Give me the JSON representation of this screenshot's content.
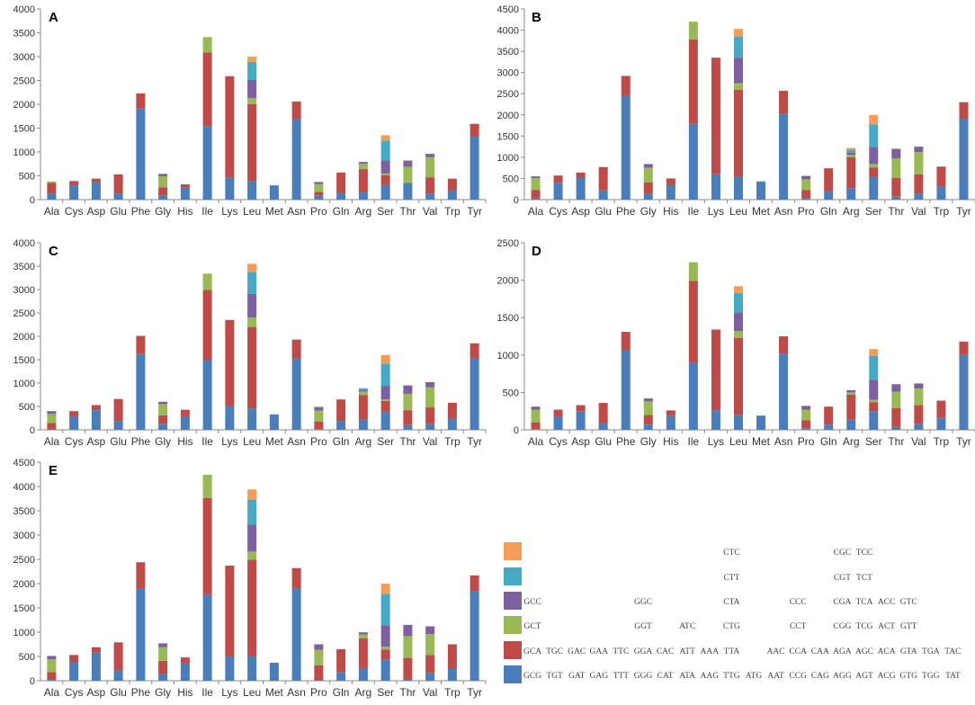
{
  "segment_colors": [
    "#4A7EBB",
    "#BE4B48",
    "#98B954",
    "#7D60A0",
    "#46AAC5",
    "#F59D56"
  ],
  "categories": [
    "Ala",
    "Cys",
    "Asp",
    "Glu",
    "Phe",
    "Gly",
    "His",
    "Ile",
    "Lys",
    "Leu",
    "Met",
    "Asn",
    "Pro",
    "Gln",
    "Arg",
    "Ser",
    "Thr",
    "Val",
    "Trp",
    "Tyr"
  ],
  "chart_data": [
    {
      "type": "bar",
      "stacked": true,
      "panel_label": "A",
      "title": "",
      "xlabel": "",
      "ylabel": "",
      "ylim": [
        0,
        4000
      ],
      "yticks": [
        0,
        500,
        1000,
        1500,
        2000,
        2500,
        3000,
        3500,
        4000
      ],
      "categories": [
        "Ala",
        "Cys",
        "Asp",
        "Glu",
        "Phe",
        "Gly",
        "His",
        "Ile",
        "Lys",
        "Leu",
        "Met",
        "Asn",
        "Pro",
        "Gln",
        "Arg",
        "Ser",
        "Thr",
        "Val",
        "Trp",
        "Tyr"
      ],
      "stacks": [
        [
          120,
          230,
          30,
          0,
          0,
          0
        ],
        [
          300,
          90,
          0,
          0,
          0,
          0
        ],
        [
          370,
          70,
          0,
          0,
          0,
          0
        ],
        [
          120,
          410,
          0,
          0,
          0,
          0
        ],
        [
          1910,
          320,
          0,
          0,
          0,
          0
        ],
        [
          90,
          170,
          230,
          50,
          0,
          0
        ],
        [
          250,
          70,
          0,
          0,
          0,
          0
        ],
        [
          1540,
          1550,
          320,
          0,
          0,
          0
        ],
        [
          460,
          2130,
          0,
          0,
          0,
          0
        ],
        [
          390,
          1610,
          130,
          380,
          380,
          110
        ],
        [
          300,
          0,
          0,
          0,
          0,
          0
        ],
        [
          1690,
          370,
          0,
          0,
          0,
          0
        ],
        [
          80,
          80,
          170,
          40,
          0,
          0
        ],
        [
          140,
          430,
          0,
          0,
          0,
          0
        ],
        [
          170,
          470,
          110,
          40,
          0,
          0
        ],
        [
          310,
          200,
          40,
          270,
          420,
          110
        ],
        [
          350,
          0,
          340,
          130,
          0,
          0
        ],
        [
          120,
          350,
          420,
          70,
          0,
          0
        ],
        [
          190,
          250,
          0,
          0,
          0,
          0
        ],
        [
          1320,
          270,
          0,
          0,
          0,
          0
        ]
      ]
    },
    {
      "type": "bar",
      "stacked": true,
      "panel_label": "B",
      "title": "",
      "xlabel": "",
      "ylabel": "",
      "ylim": [
        0,
        4500
      ],
      "yticks": [
        0,
        500,
        1000,
        1500,
        2000,
        2500,
        3000,
        3500,
        4000,
        4500
      ],
      "categories": [
        "Ala",
        "Cys",
        "Asp",
        "Glu",
        "Phe",
        "Gly",
        "His",
        "Ile",
        "Lys",
        "Leu",
        "Met",
        "Asn",
        "Pro",
        "Gln",
        "Arg",
        "Ser",
        "Thr",
        "Val",
        "Trp",
        "Tyr"
      ],
      "stacks": [
        [
          30,
          200,
          280,
          40,
          0,
          0
        ],
        [
          400,
          170,
          0,
          0,
          0,
          0
        ],
        [
          520,
          120,
          0,
          0,
          0,
          0
        ],
        [
          220,
          550,
          0,
          0,
          0,
          0
        ],
        [
          2450,
          470,
          0,
          0,
          0,
          0
        ],
        [
          130,
          280,
          340,
          90,
          0,
          0
        ],
        [
          340,
          160,
          0,
          0,
          0,
          0
        ],
        [
          1790,
          1990,
          420,
          0,
          0,
          0
        ],
        [
          600,
          2750,
          0,
          0,
          0,
          0
        ],
        [
          540,
          2050,
          160,
          600,
          500,
          180
        ],
        [
          430,
          0,
          0,
          0,
          0,
          0
        ],
        [
          2030,
          540,
          0,
          0,
          0,
          0
        ],
        [
          30,
          200,
          250,
          80,
          0,
          0
        ],
        [
          200,
          540,
          0,
          0,
          0,
          0
        ],
        [
          270,
          730,
          60,
          50,
          70,
          40
        ],
        [
          540,
          220,
          80,
          400,
          540,
          220
        ],
        [
          70,
          440,
          460,
          230,
          0,
          0
        ],
        [
          140,
          460,
          520,
          130,
          0,
          0
        ],
        [
          310,
          470,
          0,
          0,
          0,
          0
        ],
        [
          1910,
          390,
          0,
          0,
          0,
          0
        ]
      ]
    },
    {
      "type": "bar",
      "stacked": true,
      "panel_label": "C",
      "title": "",
      "xlabel": "",
      "ylabel": "",
      "ylim": [
        0,
        4000
      ],
      "yticks": [
        0,
        500,
        1000,
        1500,
        2000,
        2500,
        3000,
        3500,
        4000
      ],
      "categories": [
        "Ala",
        "Cys",
        "Asp",
        "Glu",
        "Phe",
        "Gly",
        "His",
        "Ile",
        "Lys",
        "Leu",
        "Met",
        "Asn",
        "Pro",
        "Gln",
        "Arg",
        "Ser",
        "Thr",
        "Val",
        "Trp",
        "Tyr"
      ],
      "stacks": [
        [
          20,
          130,
          190,
          60,
          0,
          0
        ],
        [
          290,
          110,
          0,
          0,
          0,
          0
        ],
        [
          420,
          110,
          0,
          0,
          0,
          0
        ],
        [
          190,
          470,
          0,
          0,
          0,
          0
        ],
        [
          1620,
          390,
          0,
          0,
          0,
          0
        ],
        [
          130,
          180,
          240,
          50,
          0,
          0
        ],
        [
          290,
          140,
          0,
          0,
          0,
          0
        ],
        [
          1490,
          1500,
          350,
          0,
          0,
          0
        ],
        [
          510,
          1840,
          0,
          0,
          0,
          0
        ],
        [
          460,
          1740,
          200,
          510,
          470,
          170
        ],
        [
          330,
          0,
          0,
          0,
          0,
          0
        ],
        [
          1530,
          400,
          0,
          0,
          0,
          0
        ],
        [
          20,
          160,
          230,
          80,
          0,
          0
        ],
        [
          190,
          460,
          0,
          0,
          0,
          0
        ],
        [
          220,
          520,
          80,
          40,
          30,
          0
        ],
        [
          390,
          230,
          30,
          290,
          480,
          180
        ],
        [
          100,
          320,
          350,
          180,
          0,
          0
        ],
        [
          120,
          360,
          430,
          110,
          0,
          0
        ],
        [
          240,
          340,
          0,
          0,
          0,
          0
        ],
        [
          1530,
          320,
          0,
          0,
          0,
          0
        ]
      ]
    },
    {
      "type": "bar",
      "stacked": true,
      "panel_label": "D",
      "title": "",
      "xlabel": "",
      "ylabel": "",
      "ylim": [
        0,
        2500
      ],
      "yticks": [
        0,
        500,
        1000,
        1500,
        2000,
        2500
      ],
      "categories": [
        "Ala",
        "Cys",
        "Asp",
        "Glu",
        "Phe",
        "Gly",
        "His",
        "Ile",
        "Lys",
        "Leu",
        "Met",
        "Asn",
        "Pro",
        "Gln",
        "Arg",
        "Ser",
        "Thr",
        "Val",
        "Trp",
        "Tyr"
      ],
      "stacks": [
        [
          10,
          90,
          170,
          40,
          0,
          0
        ],
        [
          180,
          90,
          0,
          0,
          0,
          0
        ],
        [
          250,
          80,
          0,
          0,
          0,
          0
        ],
        [
          90,
          270,
          0,
          0,
          0,
          0
        ],
        [
          1070,
          240,
          0,
          0,
          0,
          0
        ],
        [
          70,
          130,
          180,
          40,
          0,
          0
        ],
        [
          190,
          70,
          0,
          0,
          0,
          0
        ],
        [
          900,
          1090,
          250,
          0,
          0,
          0
        ],
        [
          260,
          1080,
          0,
          0,
          0,
          0
        ],
        [
          200,
          1030,
          90,
          250,
          260,
          90
        ],
        [
          190,
          0,
          0,
          0,
          0,
          0
        ],
        [
          1020,
          230,
          0,
          0,
          0,
          0
        ],
        [
          20,
          110,
          140,
          50,
          0,
          0
        ],
        [
          70,
          240,
          0,
          0,
          0,
          0
        ],
        [
          140,
          330,
          30,
          30,
          0,
          0
        ],
        [
          250,
          120,
          30,
          270,
          320,
          90
        ],
        [
          40,
          250,
          220,
          100,
          0,
          0
        ],
        [
          80,
          250,
          220,
          70,
          0,
          0
        ],
        [
          160,
          230,
          0,
          0,
          0,
          0
        ],
        [
          1000,
          180,
          0,
          0,
          0,
          0
        ]
      ]
    },
    {
      "type": "bar",
      "stacked": true,
      "panel_label": "E",
      "title": "",
      "xlabel": "",
      "ylabel": "",
      "ylim": [
        0,
        4500
      ],
      "yticks": [
        0,
        500,
        1000,
        1500,
        2000,
        2500,
        3000,
        3500,
        4000,
        4500
      ],
      "categories": [
        "Ala",
        "Cys",
        "Asp",
        "Glu",
        "Phe",
        "Gly",
        "His",
        "Ile",
        "Lys",
        "Leu",
        "Met",
        "Asn",
        "Pro",
        "Gln",
        "Arg",
        "Ser",
        "Thr",
        "Val",
        "Trp",
        "Tyr"
      ],
      "stacks": [
        [
          20,
          160,
          260,
          70,
          0,
          0
        ],
        [
          380,
          150,
          0,
          0,
          0,
          0
        ],
        [
          580,
          110,
          0,
          0,
          0,
          0
        ],
        [
          220,
          570,
          0,
          0,
          0,
          0
        ],
        [
          1900,
          540,
          0,
          0,
          0,
          0
        ],
        [
          140,
          270,
          280,
          80,
          0,
          0
        ],
        [
          360,
          120,
          0,
          0,
          0,
          0
        ],
        [
          1780,
          1980,
          480,
          0,
          0,
          0
        ],
        [
          500,
          1870,
          0,
          0,
          0,
          0
        ],
        [
          510,
          1980,
          170,
          560,
          510,
          210
        ],
        [
          370,
          0,
          0,
          0,
          0,
          0
        ],
        [
          1900,
          420,
          0,
          0,
          0,
          0
        ],
        [
          10,
          310,
          320,
          110,
          0,
          0
        ],
        [
          180,
          470,
          0,
          0,
          0,
          0
        ],
        [
          250,
          620,
          80,
          40,
          10,
          0
        ],
        [
          440,
          200,
          60,
          440,
          650,
          210
        ],
        [
          20,
          450,
          450,
          230,
          0,
          0
        ],
        [
          160,
          370,
          430,
          160,
          0,
          0
        ],
        [
          250,
          500,
          0,
          0,
          0,
          0
        ],
        [
          1850,
          320,
          0,
          0,
          0,
          0
        ]
      ]
    }
  ],
  "legend": {
    "rows": [
      [
        "",
        "",
        "",
        "",
        "",
        "",
        "",
        "",
        "",
        "CTC",
        "",
        "",
        "",
        "",
        "CGC",
        "TCC",
        "",
        "",
        "",
        ""
      ],
      [
        "",
        "",
        "",
        "",
        "",
        "",
        "",
        "",
        "",
        "CTT",
        "",
        "",
        "",
        "",
        "CGT",
        "TCT",
        "",
        "",
        "",
        ""
      ],
      [
        "GCC",
        "",
        "",
        "",
        "",
        "GGC",
        "",
        "",
        "",
        "CTA",
        "",
        "",
        "CCC",
        "",
        "CGA",
        "TCA",
        "ACC",
        "GTC",
        "",
        ""
      ],
      [
        "GCT",
        "",
        "",
        "",
        "",
        "GGT",
        "",
        "ATC",
        "",
        "CTG",
        "",
        "",
        "CCT",
        "",
        "CGG",
        "TCG",
        "ACT",
        "GTT",
        "",
        ""
      ],
      [
        "GCA",
        "TGC",
        "GAC",
        "GAA",
        "TTC",
        "GGA",
        "CAC",
        "ATT",
        "AAA",
        "TTA",
        "",
        "AAC",
        "CCA",
        "CAA",
        "AGA",
        "AGC",
        "ACA",
        "GTA",
        "TGA",
        "TAC"
      ],
      [
        "GCG",
        "TGT",
        "GAT",
        "GAG",
        "TTT",
        "GGG",
        "CAT",
        "ATA",
        "AAG",
        "TTG",
        "ATG",
        "AAT",
        "CCG",
        "CAG",
        "AGG",
        "AGT",
        "ACG",
        "GTG",
        "TGG",
        "TAT"
      ]
    ]
  }
}
